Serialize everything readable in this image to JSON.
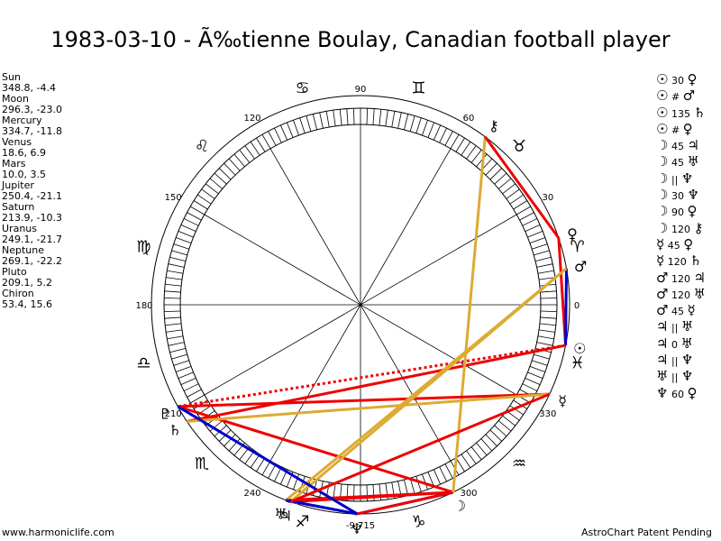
{
  "title": "1983-03-10 - Ã‰tienne Boulay, Canadian football player",
  "planets": [
    {
      "name": "Sun",
      "glyph": "☉",
      "coords": "348.8, -4.4",
      "lon": 348.8
    },
    {
      "name": "Moon",
      "glyph": "☽",
      "coords": "296.3, -23.0",
      "lon": 296.3
    },
    {
      "name": "Mercury",
      "glyph": "☿",
      "coords": "334.7, -11.8",
      "lon": 334.7
    },
    {
      "name": "Venus",
      "glyph": "♀",
      "coords": "18.6, 6.9",
      "lon": 18.6
    },
    {
      "name": "Mars",
      "glyph": "♂",
      "coords": "10.0, 3.5",
      "lon": 10.0
    },
    {
      "name": "Jupiter",
      "glyph": "♃",
      "coords": "250.4, -21.1",
      "lon": 250.4
    },
    {
      "name": "Saturn",
      "glyph": "♄",
      "coords": "213.9, -10.3",
      "lon": 213.9
    },
    {
      "name": "Uranus",
      "glyph": "♅",
      "coords": "249.1, -21.7",
      "lon": 249.1
    },
    {
      "name": "Neptune",
      "glyph": "♆",
      "coords": "269.1, -22.2",
      "lon": 269.1
    },
    {
      "name": "Pluto",
      "glyph": "♇",
      "coords": "209.1, 5.2",
      "lon": 209.1
    },
    {
      "name": "Chiron",
      "glyph": "⚷",
      "coords": "53.4, 15.6",
      "lon": 53.4
    }
  ],
  "aspects": [
    {
      "p1": "☉",
      "sym": "30",
      "p2": "♀"
    },
    {
      "p1": "☉",
      "sym": "#",
      "p2": "♂"
    },
    {
      "p1": "☉",
      "sym": "135",
      "p2": "♄"
    },
    {
      "p1": "☉",
      "sym": "#",
      "p2": "♀"
    },
    {
      "p1": "☽",
      "sym": "45",
      "p2": "♃"
    },
    {
      "p1": "☽",
      "sym": "45",
      "p2": "♅"
    },
    {
      "p1": "☽",
      "sym": "||",
      "p2": "♆"
    },
    {
      "p1": "☽",
      "sym": "30",
      "p2": "♆"
    },
    {
      "p1": "☽",
      "sym": "90",
      "p2": "♀"
    },
    {
      "p1": "☽",
      "sym": "120",
      "p2": "⚷"
    },
    {
      "p1": "☿",
      "sym": "45",
      "p2": "♀"
    },
    {
      "p1": "☿",
      "sym": "120",
      "p2": "♄"
    },
    {
      "p1": "♂",
      "sym": "120",
      "p2": "♃"
    },
    {
      "p1": "♂",
      "sym": "120",
      "p2": "♅"
    },
    {
      "p1": "♂",
      "sym": "45",
      "p2": "☿"
    },
    {
      "p1": "♃",
      "sym": "||",
      "p2": "♅"
    },
    {
      "p1": "♃",
      "sym": "0",
      "p2": "♅"
    },
    {
      "p1": "♃",
      "sym": "||",
      "p2": "♆"
    },
    {
      "p1": "♅",
      "sym": "||",
      "p2": "♆"
    },
    {
      "p1": "♆",
      "sym": "60",
      "p2": "♀"
    }
  ],
  "footer": {
    "left": "www.harmoniclife.com",
    "right": "AstroChart Patent Pending"
  },
  "chart_data": {
    "type": "astrological-wheel",
    "degree_labels": [
      "0",
      "30",
      "60",
      "90",
      "120",
      "150",
      "180",
      "210",
      "240",
      "270",
      "300",
      "330"
    ],
    "signs": [
      "♈",
      "♉",
      "♊",
      "♋",
      "♌",
      "♍",
      "♎",
      "♏",
      "♐",
      "♑",
      "♒",
      "♓"
    ],
    "bottom_label": "-9,715",
    "bodies": [
      {
        "name": "Sun",
        "glyph": "☉",
        "lon": 348.8
      },
      {
        "name": "Moon",
        "glyph": "☽",
        "lon": 296.3
      },
      {
        "name": "Mercury",
        "glyph": "☿",
        "lon": 334.7
      },
      {
        "name": "Venus",
        "glyph": "♀",
        "lon": 18.6
      },
      {
        "name": "Mars",
        "glyph": "♂",
        "lon": 10.0
      },
      {
        "name": "Jupiter",
        "glyph": "♃",
        "lon": 250.4
      },
      {
        "name": "Saturn",
        "glyph": "♄",
        "lon": 213.9
      },
      {
        "name": "Uranus",
        "glyph": "♅",
        "lon": 249.1
      },
      {
        "name": "Neptune",
        "glyph": "♆",
        "lon": 269.1
      },
      {
        "name": "Pluto",
        "glyph": "♇",
        "lon": 209.1
      },
      {
        "name": "Chiron",
        "glyph": "⚷",
        "lon": 53.4
      }
    ],
    "aspect_lines": [
      {
        "a": "Sun",
        "b": "Venus",
        "color": "#ee0000",
        "style": "solid"
      },
      {
        "a": "Sun",
        "b": "Mars",
        "color": "#0000cc",
        "style": "solid"
      },
      {
        "a": "Sun",
        "b": "Saturn",
        "color": "#ee0000",
        "style": "solid"
      },
      {
        "a": "Sun",
        "b": "Pluto",
        "color": "#ee0000",
        "style": "dotted"
      },
      {
        "a": "Moon",
        "b": "Jupiter",
        "color": "#ee0000",
        "style": "solid"
      },
      {
        "a": "Moon",
        "b": "Uranus",
        "color": "#ee0000",
        "style": "solid"
      },
      {
        "a": "Moon",
        "b": "Neptune",
        "color": "#0000cc",
        "style": "solid"
      },
      {
        "a": "Moon",
        "b": "Neptune",
        "color": "#ee0000",
        "style": "solid"
      },
      {
        "a": "Moon",
        "b": "Pluto",
        "color": "#ee0000",
        "style": "solid"
      },
      {
        "a": "Moon",
        "b": "Chiron",
        "color": "#ddaa33",
        "style": "solid"
      },
      {
        "a": "Mercury",
        "b": "Pluto",
        "color": "#ee0000",
        "style": "solid"
      },
      {
        "a": "Mercury",
        "b": "Saturn",
        "color": "#ddaa33",
        "style": "solid"
      },
      {
        "a": "Mars",
        "b": "Jupiter",
        "color": "#ddaa33",
        "style": "solid"
      },
      {
        "a": "Mars",
        "b": "Uranus",
        "color": "#ddaa33",
        "style": "solid"
      },
      {
        "a": "Jupiter",
        "b": "Uranus",
        "color": "#0000cc",
        "style": "solid"
      },
      {
        "a": "Jupiter",
        "b": "Neptune",
        "color": "#ddaa33",
        "style": "dotted"
      },
      {
        "a": "Uranus",
        "b": "Neptune",
        "color": "#0000cc",
        "style": "solid"
      },
      {
        "a": "Neptune",
        "b": "Pluto",
        "color": "#0000cc",
        "style": "solid"
      },
      {
        "a": "Chiron",
        "b": "Venus",
        "color": "#ee0000",
        "style": "solid"
      },
      {
        "a": "Mercury",
        "b": "Jupiter",
        "color": "#ee0000",
        "style": "solid"
      }
    ]
  }
}
